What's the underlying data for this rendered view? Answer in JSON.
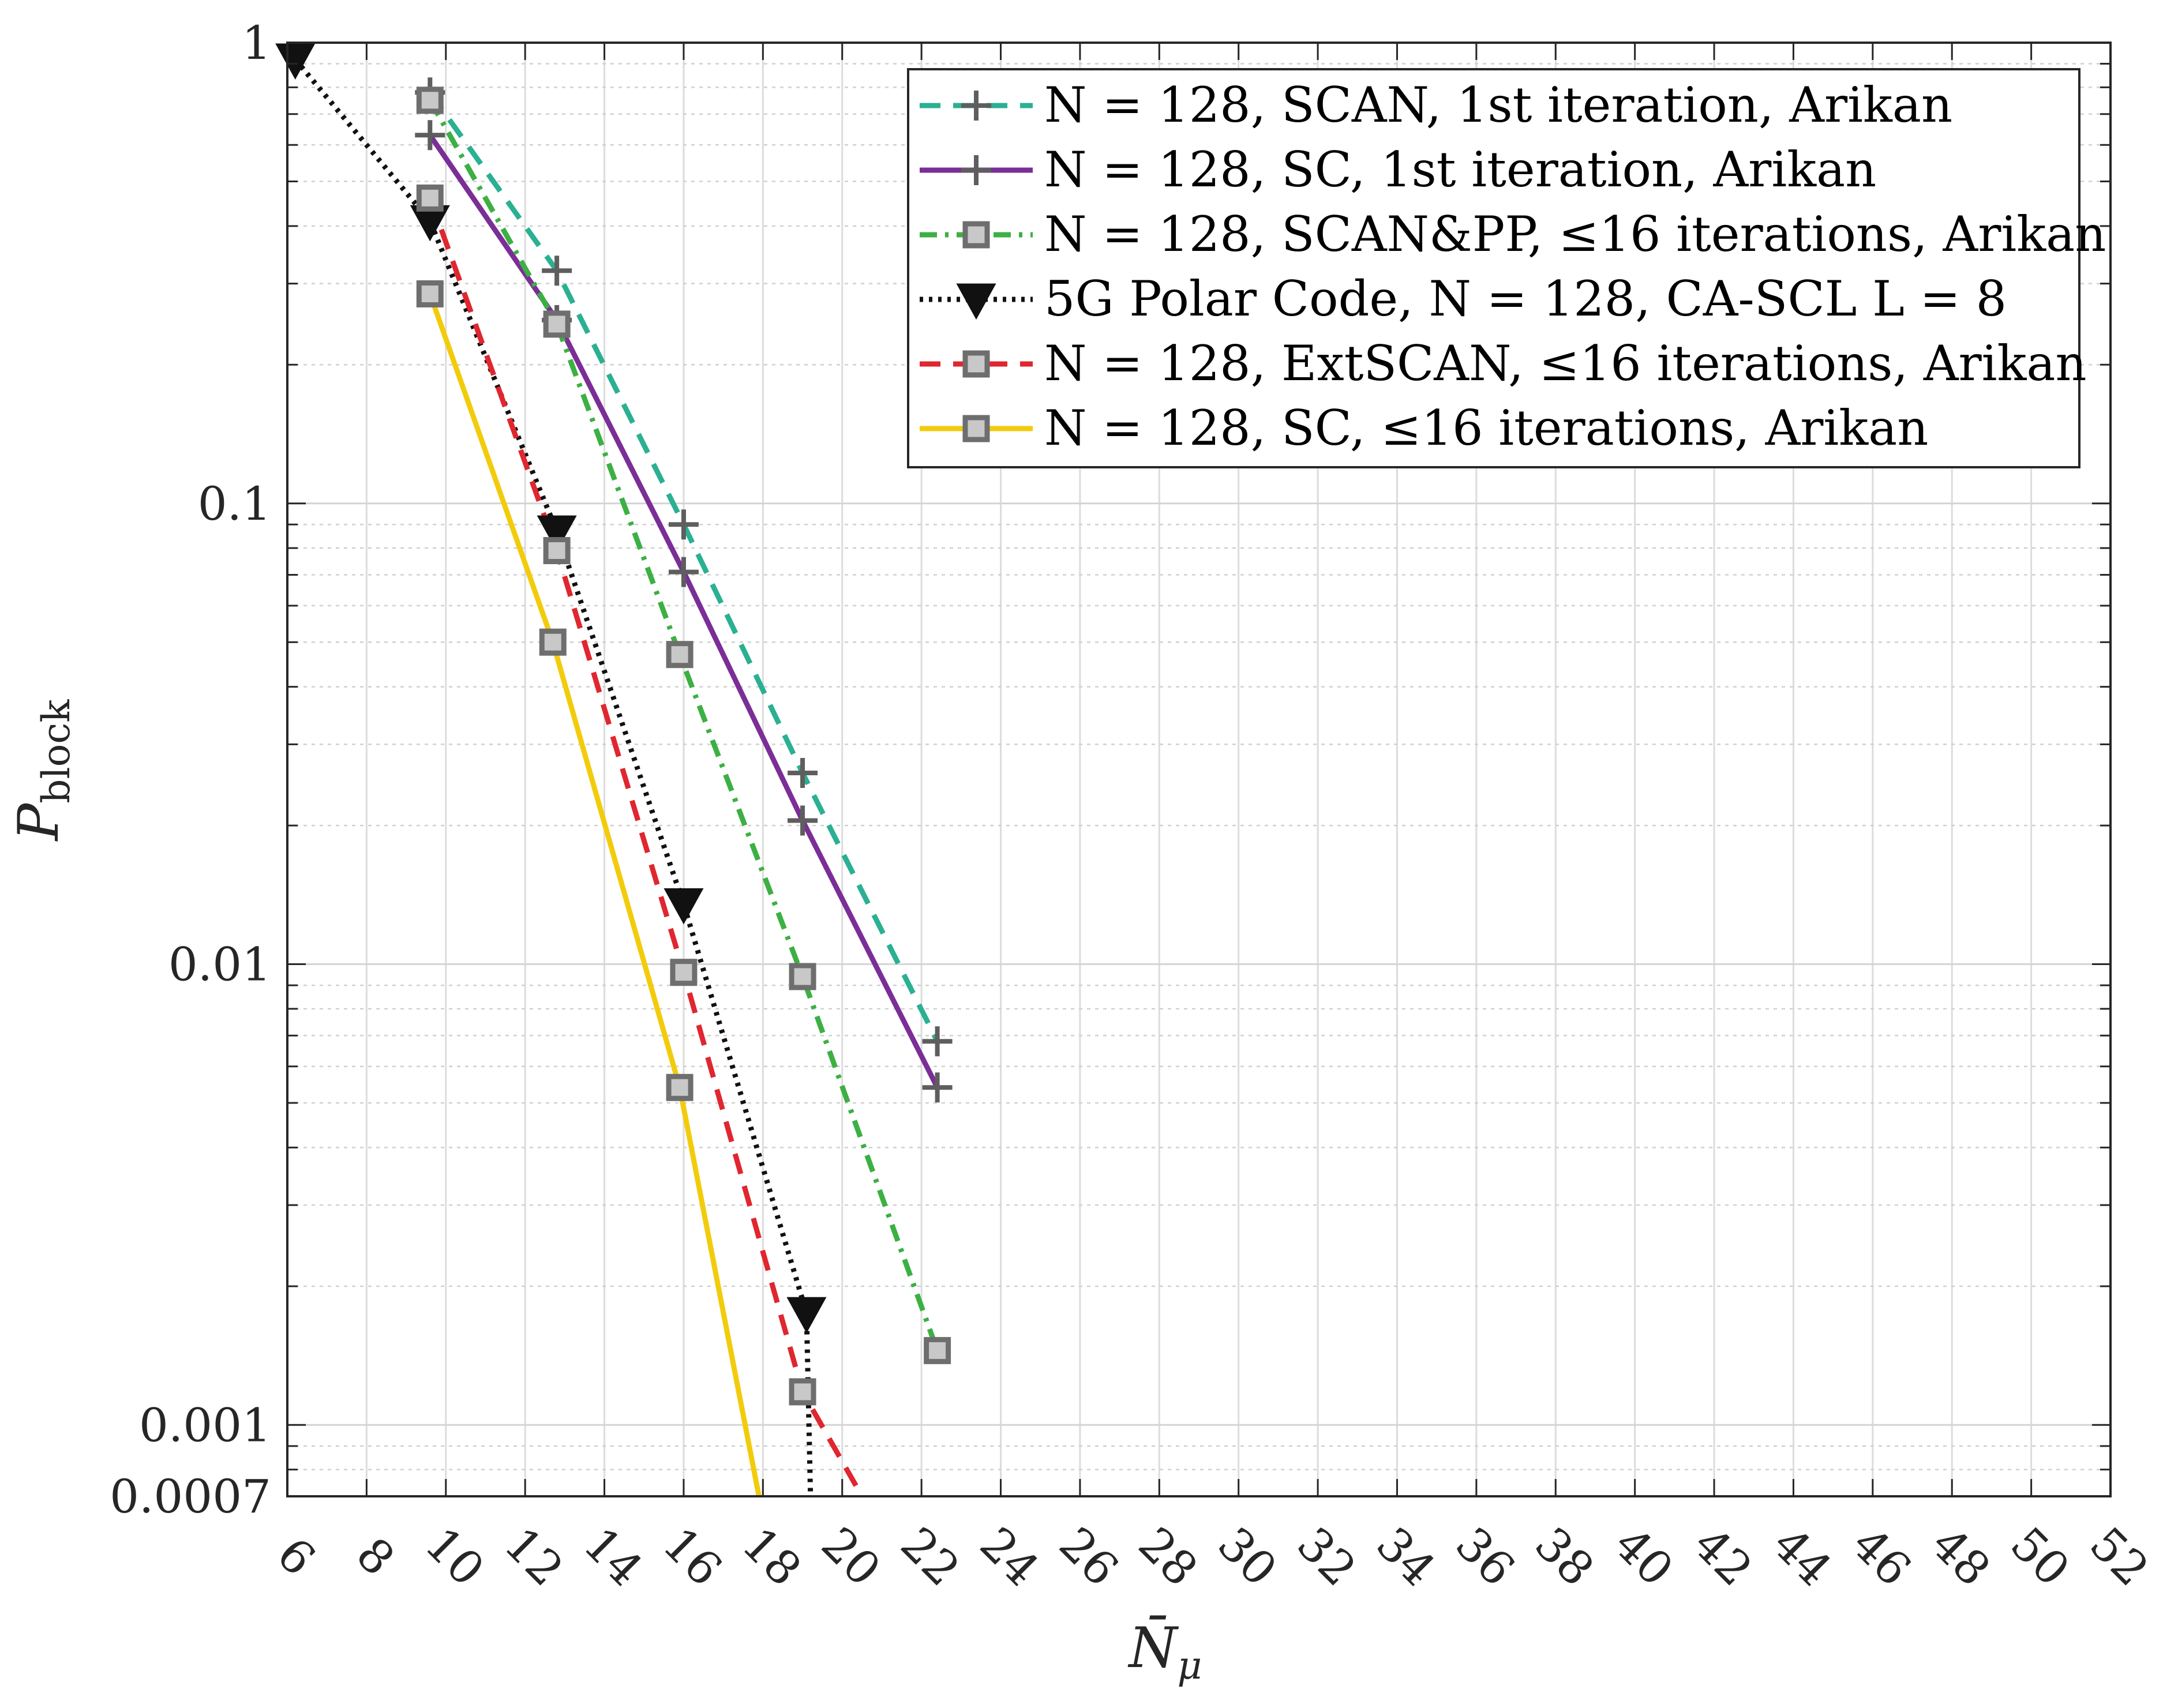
{
  "chart_data": {
    "type": "line",
    "xlabel": "N̄",
    "xlabel_sub": "μ",
    "ylabel": "P",
    "ylabel_sub": "block",
    "xlim": [
      6,
      52
    ],
    "ylim": [
      0.0007,
      1
    ],
    "yscale": "log",
    "grid": true,
    "legend_position": "top-right",
    "x_ticks": [
      "6",
      "8",
      "10",
      "12",
      "14",
      "16",
      "18",
      "20",
      "22",
      "24",
      "26",
      "28",
      "30",
      "32",
      "34",
      "36",
      "38",
      "40",
      "42",
      "44",
      "46",
      "48",
      "50",
      "52"
    ],
    "y_ticks": [
      {
        "value": 1,
        "label": "1"
      },
      {
        "value": 0.1,
        "label": "0.1"
      },
      {
        "value": 0.01,
        "label": "0.01"
      },
      {
        "value": 0.001,
        "label": "0.001"
      },
      {
        "value": 0.0007,
        "label": "0.0007"
      }
    ],
    "series": [
      {
        "name": "N = 128, SCAN, 1st iteration, Arikan",
        "color": "#2ab092",
        "dash": "36,22",
        "marker": "plus",
        "x": [
          9.6,
          12.8,
          16.0,
          19.0,
          22.4
        ],
        "y": [
          0.78,
          0.32,
          0.09,
          0.026,
          0.0068
        ]
      },
      {
        "name": "N = 128, SC, 1st iteration, Arikan",
        "color": "#7b2e96",
        "dash": "",
        "marker": "plus",
        "x": [
          9.6,
          12.8,
          16.0,
          19.0,
          22.4
        ],
        "y": [
          0.63,
          0.25,
          0.071,
          0.0205,
          0.0054
        ]
      },
      {
        "name": "N = 128, SCAN&PP, ≤16 iterations, Arikan",
        "color": "#3cb043",
        "dash": "30,14,6,14",
        "marker": "square",
        "x": [
          9.6,
          12.8,
          15.9,
          19.0,
          22.4
        ],
        "y": [
          0.75,
          0.245,
          0.047,
          0.0094,
          0.00145
        ]
      },
      {
        "name": "5G Polar Code, N = 128, CA-SCL L = 8",
        "color": "#111111",
        "dash": "6,10",
        "marker": "triangle",
        "x": [
          6.2,
          9.6,
          12.8,
          16.0,
          19.1,
          19.2
        ],
        "y": [
          0.92,
          0.41,
          0.087,
          0.0135,
          0.00175,
          0.0007
        ]
      },
      {
        "name": "N = 128, ExtSCAN, ≤16 iterations, Arikan",
        "color": "#e0262f",
        "dash": "36,22",
        "marker": "square",
        "x": [
          9.6,
          12.8,
          16.0,
          19.0,
          20.5
        ],
        "y": [
          0.46,
          0.079,
          0.0096,
          0.00118,
          0.0007
        ]
      },
      {
        "name": "N = 128, SC, ≤16 iterations, Arikan",
        "color": "#f2cc0c",
        "dash": "",
        "marker": "square",
        "x": [
          9.6,
          12.7,
          15.9,
          17.9
        ],
        "y": [
          0.285,
          0.05,
          0.0054,
          0.0007
        ]
      }
    ],
    "point_markers": [
      {
        "series": 0,
        "indices": [
          0,
          1,
          2,
          3,
          4
        ]
      },
      {
        "series": 1,
        "indices": [
          0,
          1,
          2,
          3,
          4
        ]
      },
      {
        "series": 2,
        "indices": [
          0,
          1,
          2,
          3,
          4
        ]
      },
      {
        "series": 3,
        "indices": [
          0,
          1,
          2,
          3,
          4
        ]
      },
      {
        "series": 4,
        "indices": [
          0,
          1,
          2,
          3
        ]
      },
      {
        "series": 5,
        "indices": [
          0,
          1,
          2
        ]
      }
    ],
    "legend": [
      {
        "label": "N = 128, SCAN, 1st iteration, Arikan"
      },
      {
        "label": "N = 128, SC, 1st iteration, Arikan"
      },
      {
        "label": "N = 128, SCAN&PP, ≤16 iterations, Arikan"
      },
      {
        "label": "5G Polar Code, N = 128, CA-SCL L = 8"
      },
      {
        "label": "N = 128, ExtSCAN, ≤16 iterations, Arikan"
      },
      {
        "label": "N = 128, SC, ≤16 iterations, Arikan"
      }
    ]
  }
}
